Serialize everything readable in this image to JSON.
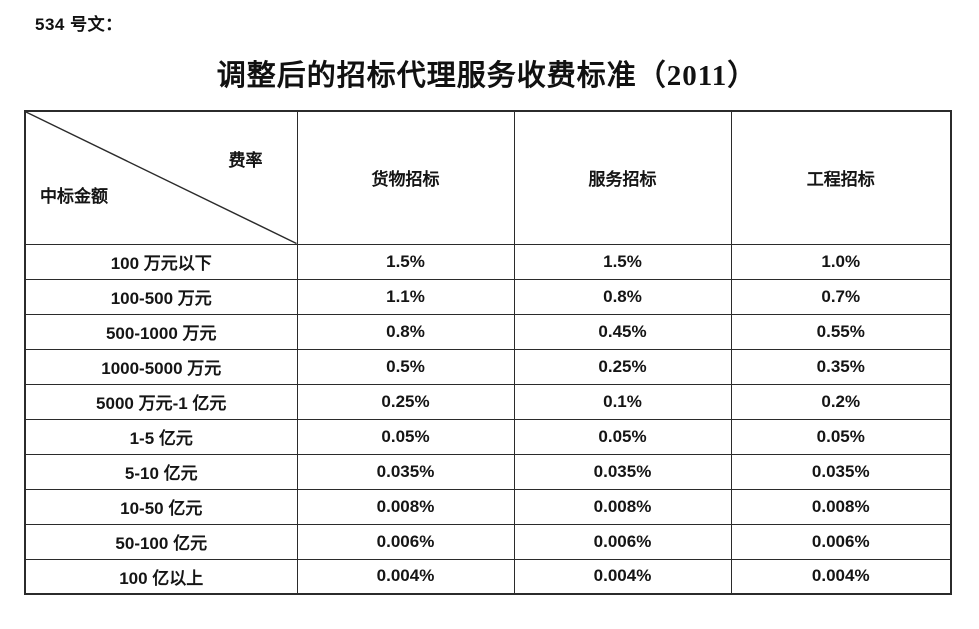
{
  "doc": {
    "ref_label": "534 号文：",
    "title": "调整后的招标代理服务收费标准（2011）"
  },
  "table": {
    "corner": {
      "top_right": "费率",
      "bottom_left": "中标金额"
    },
    "columns": [
      "货物招标",
      "服务招标",
      "工程招标"
    ],
    "rows": [
      {
        "range": "100 万元以下",
        "values": [
          "1.5%",
          "1.5%",
          "1.0%"
        ]
      },
      {
        "range": "100-500 万元",
        "values": [
          "1.1%",
          "0.8%",
          "0.7%"
        ]
      },
      {
        "range": "500-1000 万元",
        "values": [
          "0.8%",
          "0.45%",
          "0.55%"
        ]
      },
      {
        "range": "1000-5000 万元",
        "values": [
          "0.5%",
          "0.25%",
          "0.35%"
        ]
      },
      {
        "range": "5000 万元-1 亿元",
        "values": [
          "0.25%",
          "0.1%",
          "0.2%"
        ]
      },
      {
        "range": "1-5 亿元",
        "values": [
          "0.05%",
          "0.05%",
          "0.05%"
        ]
      },
      {
        "range": "5-10 亿元",
        "values": [
          "0.035%",
          "0.035%",
          "0.035%"
        ]
      },
      {
        "range": "10-50 亿元",
        "values": [
          "0.008%",
          "0.008%",
          "0.008%"
        ]
      },
      {
        "range": "50-100 亿元",
        "values": [
          "0.006%",
          "0.006%",
          "0.006%"
        ]
      },
      {
        "range": "100 亿以上",
        "values": [
          "0.004%",
          "0.004%",
          "0.004%"
        ]
      }
    ]
  },
  "colors": {
    "text": "#151515",
    "border": "#2b2b2b",
    "background": "#ffffff"
  }
}
